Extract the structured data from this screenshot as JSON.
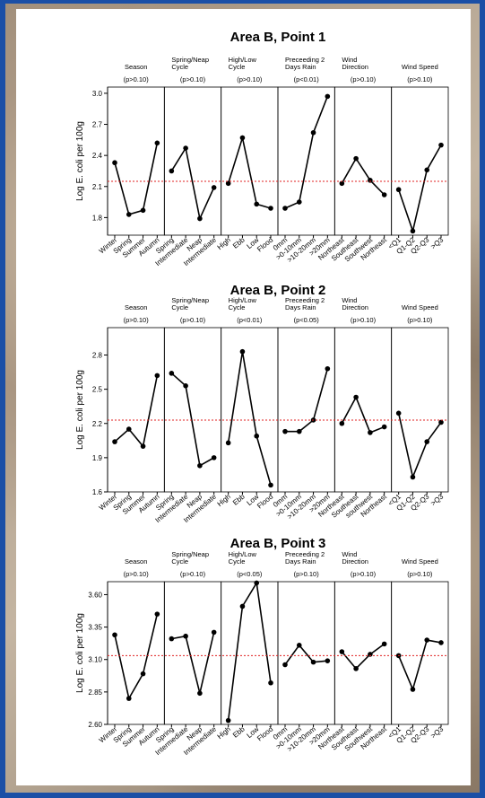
{
  "chart_data": [
    {
      "type": "line",
      "title": "Area B,  Point 1",
      "y_label": "Log E. coli per 100g",
      "ylim": [
        1.63,
        3.06
      ],
      "yticks": [
        1.8,
        2.1,
        2.4,
        2.7,
        {
          "value": 3,
          "label": "3.0"
        }
      ],
      "ref_line": 2.15,
      "ref_color": "#e02020",
      "color": "#000000",
      "panels": [
        {
          "title": [
            "Season"
          ],
          "p_value": "(p>0.10)",
          "categories": [
            "Winter",
            "Spring",
            "Summer",
            "Autumn"
          ],
          "values": [
            2.33,
            1.83,
            1.87,
            2.52
          ]
        },
        {
          "title": [
            "Spring/Neap",
            "Cycle"
          ],
          "p_value": "(p>0.10)",
          "categories": [
            "Spring",
            "Intermediate",
            "Neap",
            "Intermediate"
          ],
          "values": [
            2.25,
            2.47,
            1.79,
            2.09
          ]
        },
        {
          "title": [
            "High/Low",
            "Cycle"
          ],
          "p_value": "(p>0.10)",
          "categories": [
            "High",
            "Ebb",
            "Low",
            "Flood"
          ],
          "values": [
            2.13,
            2.57,
            1.93,
            1.89
          ]
        },
        {
          "title": [
            "Preceeding 2",
            "Days Rain"
          ],
          "p_value": "(p<0.01)",
          "categories": [
            "0mm",
            ">0-10mm",
            ">10-20mm",
            ">20mm"
          ],
          "values": [
            1.89,
            1.95,
            2.62,
            2.97
          ]
        },
        {
          "title": [
            "Wind",
            "Direction"
          ],
          "p_value": "(p>0.10)",
          "categories": [
            "Northeast",
            "Southeast",
            "Southwest",
            "Northeast"
          ],
          "values": [
            2.13,
            2.37,
            2.16,
            2.02
          ]
        },
        {
          "title": [
            "Wind Speed"
          ],
          "p_value": "(p>0.10)",
          "categories": [
            "<Q1",
            "Q1-Q2",
            "Q2-Q3",
            ">Q3"
          ],
          "values": [
            2.07,
            1.67,
            2.26,
            2.5
          ]
        }
      ]
    },
    {
      "type": "line",
      "title": "Area B,  Point 2",
      "y_label": "Log E. coli per 100g",
      "ylim": [
        1.6,
        3.04
      ],
      "yticks": [
        1.6,
        1.9,
        2.2,
        2.5,
        2.8
      ],
      "ref_line": 2.23,
      "ref_color": "#e02020",
      "color": "#000000",
      "panels": [
        {
          "title": [
            "Season"
          ],
          "p_value": "(p>0.10)",
          "categories": [
            "Winter",
            "Spring",
            "Summer",
            "Autumn"
          ],
          "values": [
            2.04,
            2.15,
            2.0,
            2.62
          ]
        },
        {
          "title": [
            "Spring/Neap",
            "Cycle"
          ],
          "p_value": "(p>0.10)",
          "categories": [
            "Spring",
            "Intermediate",
            "Neap",
            "Intermediate"
          ],
          "values": [
            2.64,
            2.53,
            1.83,
            1.9
          ]
        },
        {
          "title": [
            "High/Low",
            "Cycle"
          ],
          "p_value": "(p<0.01)",
          "categories": [
            "High",
            "Ebb",
            "Low",
            "Flood"
          ],
          "values": [
            2.03,
            2.83,
            2.09,
            1.66
          ]
        },
        {
          "title": [
            "Preceeding 2",
            "Days Rain"
          ],
          "p_value": "(p<0.05)",
          "categories": [
            "0mm",
            ">0-10mm",
            ">10-20mm",
            ">20mm"
          ],
          "values": [
            2.13,
            2.13,
            2.23,
            2.68
          ]
        },
        {
          "title": [
            "Wind",
            "Direction"
          ],
          "p_value": "(p>0.10)",
          "categories": [
            "Northeast",
            "Southeast",
            "southwest",
            "Northeast"
          ],
          "values": [
            2.2,
            2.43,
            2.12,
            2.17
          ]
        },
        {
          "title": [
            "Wind Speed"
          ],
          "p_value": "(p>0.10)",
          "categories": [
            "<Q1",
            "Q1-Q2",
            "Q2-Q3",
            ">Q3"
          ],
          "values": [
            2.29,
            1.73,
            2.04,
            2.21
          ]
        }
      ]
    },
    {
      "type": "line",
      "title": "Area B,  Point 3",
      "y_label": "Log E. coli per 100g",
      "ylim": [
        2.6,
        3.7
      ],
      "yticks": [
        {
          "value": 2.6,
          "label": "2.60"
        },
        2.85,
        {
          "value": 3.1,
          "label": "3.10"
        },
        3.35,
        {
          "value": 3.6,
          "label": "3.60"
        }
      ],
      "ref_line": 3.13,
      "ref_color": "#e02020",
      "color": "#000000",
      "panels": [
        {
          "title": [
            "Season"
          ],
          "p_value": "(p>0.10)",
          "categories": [
            "Winter",
            "Spring",
            "Summer",
            "Autumn"
          ],
          "values": [
            3.29,
            2.8,
            2.99,
            3.45
          ]
        },
        {
          "title": [
            "Spring/Neap",
            "Cycle"
          ],
          "p_value": "(p>0.10)",
          "categories": [
            "Spring",
            "Intermediate",
            "Neap",
            "Intermediate"
          ],
          "values": [
            3.26,
            3.28,
            2.84,
            3.31
          ]
        },
        {
          "title": [
            "High/Low",
            "Cycle"
          ],
          "p_value": "(p<0.05)",
          "categories": [
            "High",
            "Ebb",
            "Low",
            "Flood"
          ],
          "values": [
            2.63,
            3.51,
            3.69,
            2.92
          ]
        },
        {
          "title": [
            "Preceeding 2",
            "Days Rain"
          ],
          "p_value": "(p>0.10)",
          "categories": [
            "0mm",
            ">0-10mm",
            ">10-20mm",
            ">20mm"
          ],
          "values": [
            3.06,
            3.21,
            3.08,
            3.09
          ]
        },
        {
          "title": [
            "Wind",
            "Direction"
          ],
          "p_value": "(p>0.10)",
          "categories": [
            "Northeast",
            "Southeast",
            "Southwest",
            "Northeast"
          ],
          "values": [
            3.16,
            3.03,
            3.14,
            3.22
          ]
        },
        {
          "title": [
            "Wind Speed"
          ],
          "p_value": "(p>0.10)",
          "categories": [
            "<Q1",
            "Q1-Q2",
            "Q2-Q3",
            ">Q3"
          ],
          "values": [
            3.13,
            2.87,
            3.25,
            3.23
          ]
        }
      ]
    }
  ]
}
